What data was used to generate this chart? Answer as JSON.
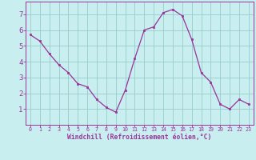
{
  "x": [
    0,
    1,
    2,
    3,
    4,
    5,
    6,
    7,
    8,
    9,
    10,
    11,
    12,
    13,
    14,
    15,
    16,
    17,
    18,
    19,
    20,
    21,
    22,
    23
  ],
  "y": [
    5.7,
    5.3,
    4.5,
    3.8,
    3.3,
    2.6,
    2.4,
    1.6,
    1.1,
    0.8,
    2.2,
    4.2,
    6.0,
    6.2,
    7.1,
    7.3,
    6.9,
    5.4,
    3.3,
    2.7,
    1.3,
    1.0,
    1.6,
    1.3
  ],
  "line_color": "#993399",
  "marker_color": "#993399",
  "bg_color": "#c8eef0",
  "grid_color": "#99cccc",
  "axis_color": "#993399",
  "tick_color": "#993399",
  "xlabel": "Windchill (Refroidissement éolien,°C)",
  "xlabel_color": "#993399",
  "xlim": [
    -0.5,
    23.5
  ],
  "ylim": [
    0.0,
    7.8
  ],
  "yticks": [
    1,
    2,
    3,
    4,
    5,
    6,
    7
  ],
  "xticks": [
    0,
    1,
    2,
    3,
    4,
    5,
    6,
    7,
    8,
    9,
    10,
    11,
    12,
    13,
    14,
    15,
    16,
    17,
    18,
    19,
    20,
    21,
    22,
    23
  ]
}
